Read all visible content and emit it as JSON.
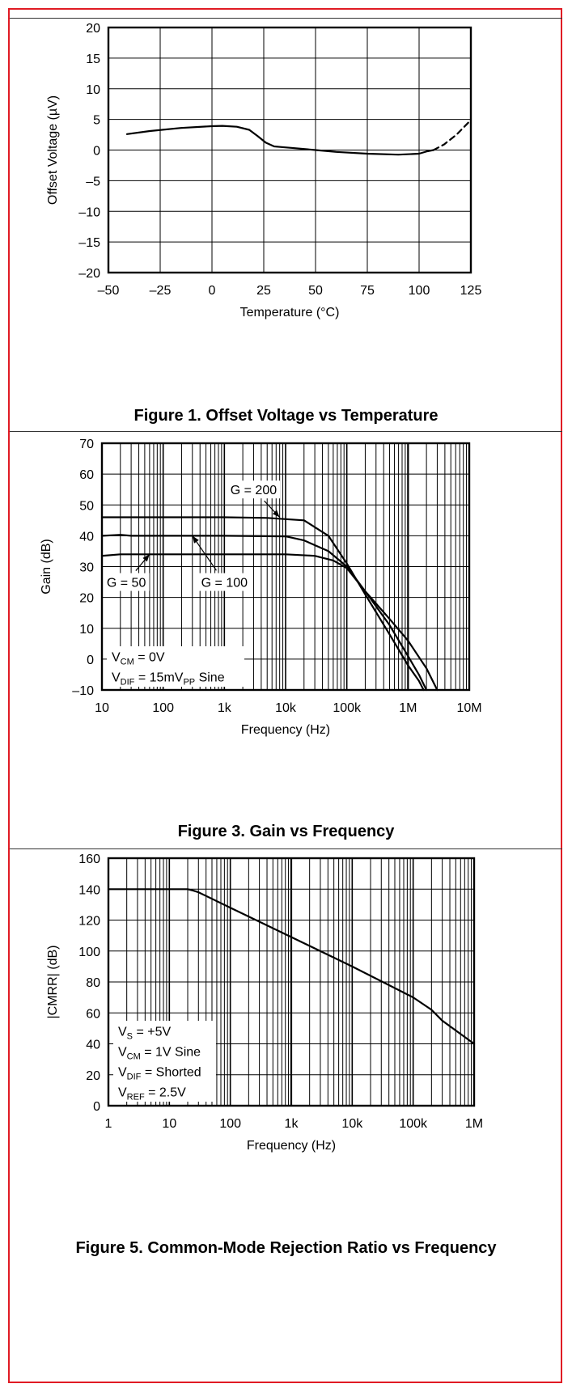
{
  "chart_data": [
    {
      "type": "line",
      "caption": "Figure 1. Offset Voltage vs Temperature",
      "xlabel": "Temperature (°C)",
      "ylabel": "Offset Voltage (µV)",
      "xlim": [
        -50,
        125
      ],
      "ylim": [
        -20,
        20
      ],
      "xscale": "linear",
      "xticks": [
        -50,
        -25,
        0,
        25,
        50,
        75,
        100,
        125
      ],
      "xtick_labels": [
        "–50",
        "–25",
        "0",
        "25",
        "50",
        "75",
        "100",
        "125"
      ],
      "yticks": [
        20,
        15,
        10,
        5,
        0,
        -5,
        -10,
        -15,
        -20
      ],
      "ytick_labels": [
        "20",
        "15",
        "10",
        "5",
        "0",
        "–5",
        "–10",
        "–15",
        "–20"
      ],
      "grid": true,
      "series": [
        {
          "style": "solid",
          "x": [
            -41,
            -30,
            -15,
            0,
            5,
            12,
            18,
            22,
            26,
            30,
            33,
            40,
            50,
            60,
            75,
            90,
            100,
            104,
            107
          ],
          "y": [
            2.6,
            3.1,
            3.6,
            3.9,
            3.95,
            3.8,
            3.3,
            2.3,
            1.2,
            0.6,
            0.5,
            0.3,
            0.0,
            -0.3,
            -0.6,
            -0.75,
            -0.6,
            -0.2,
            0.0
          ]
        },
        {
          "style": "dashed",
          "x": [
            107,
            112,
            118,
            125
          ],
          "y": [
            0.0,
            0.9,
            2.5,
            4.9
          ]
        }
      ],
      "annotations": []
    },
    {
      "type": "line",
      "caption": "Figure 3. Gain vs Frequency",
      "xlabel": "Frequency (Hz)",
      "ylabel": "Gain (dB)",
      "xlim": [
        10,
        10000000
      ],
      "ylim": [
        -10,
        70
      ],
      "xscale": "log",
      "xticks": [
        10,
        100,
        1000,
        10000,
        100000,
        1000000,
        10000000
      ],
      "xtick_labels": [
        "10",
        "100",
        "1k",
        "10k",
        "100k",
        "1M",
        "10M"
      ],
      "yticks": [
        70,
        60,
        50,
        40,
        30,
        20,
        10,
        0,
        -10
      ],
      "ytick_labels": [
        "70",
        "60",
        "50",
        "40",
        "30",
        "20",
        "10",
        "0",
        "–10"
      ],
      "grid": true,
      "series": [
        {
          "x": [
            10,
            1000,
            5000,
            20000,
            50000,
            100000,
            200000,
            500000,
            1000000,
            1500000,
            1800000
          ],
          "y": [
            46,
            46,
            45.8,
            45,
            40,
            31,
            21,
            8,
            -2,
            -7,
            -10
          ]
        },
        {
          "x": [
            10,
            20,
            30,
            1000,
            10000,
            20000,
            50000,
            100000,
            200000,
            500000,
            1000000,
            1500000,
            2000000
          ],
          "y": [
            40,
            40.3,
            40,
            40,
            39.8,
            38.5,
            35,
            30,
            22,
            11,
            1,
            -5,
            -10
          ]
        },
        {
          "x": [
            10,
            20,
            30,
            1000,
            10000,
            30000,
            60000,
            100000,
            200000,
            500000,
            1000000,
            2000000,
            3000000
          ],
          "y": [
            33.5,
            34,
            34,
            34,
            34,
            33.5,
            32,
            29.5,
            22,
            13,
            6,
            -3,
            -10
          ]
        }
      ],
      "annotations": [
        {
          "label": "G = 200",
          "x": 3000,
          "y": 55,
          "arrow_to": [
            8000,
            46
          ]
        },
        {
          "label": "G = 100",
          "x": 1000,
          "y": 25,
          "arrow_to": [
            300,
            40
          ]
        },
        {
          "label": "G = 50",
          "x": 25,
          "y": 25,
          "arrow_to": [
            60,
            34
          ]
        }
      ],
      "condition_lines": [
        {
          "main": "V",
          "sub": "CM",
          "rest": " = 0V"
        },
        {
          "main": "V",
          "sub": "DIF",
          "rest": " = 15mV",
          "sub2": "PP",
          "rest2": " Sine"
        }
      ]
    },
    {
      "type": "line",
      "caption": "Figure 5. Common-Mode Rejection Ratio vs Frequency",
      "xlabel": "Frequency (Hz)",
      "ylabel": "|CMRR| (dB)",
      "xlim": [
        1,
        1000000
      ],
      "ylim": [
        0,
        160
      ],
      "xscale": "log",
      "xticks": [
        1,
        10,
        100,
        1000,
        10000,
        100000,
        1000000
      ],
      "xtick_labels": [
        "1",
        "10",
        "100",
        "1k",
        "10k",
        "100k",
        "1M"
      ],
      "yticks": [
        160,
        140,
        120,
        100,
        80,
        60,
        40,
        20,
        0
      ],
      "ytick_labels": [
        "160",
        "140",
        "120",
        "100",
        "80",
        "60",
        "40",
        "20",
        "0"
      ],
      "grid": true,
      "series": [
        {
          "x": [
            1,
            15,
            20,
            25,
            30,
            100,
            1000,
            10000,
            100000,
            200000,
            300000,
            1000000
          ],
          "y": [
            140,
            140,
            140,
            139,
            138,
            128,
            109,
            90,
            70,
            62,
            55,
            40
          ]
        }
      ],
      "annotations": [],
      "condition_lines": [
        {
          "main": "V",
          "sub": "S",
          "rest": " = +5V"
        },
        {
          "main": "V",
          "sub": "CM",
          "rest": " = 1V Sine"
        },
        {
          "main": "V",
          "sub": "DIF",
          "rest": " = Shorted"
        },
        {
          "main": "V",
          "sub": "REF",
          "rest": " = 2.5V"
        }
      ]
    }
  ]
}
